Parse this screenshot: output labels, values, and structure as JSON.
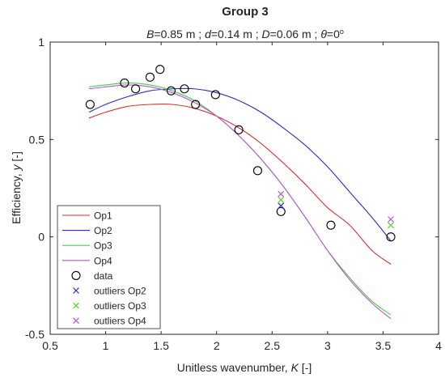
{
  "chart_data": {
    "type": "scatter",
    "title": "Group 3",
    "subtitle": {
      "parts": [
        {
          "text": "B",
          "italic": true
        },
        {
          "text": "=0.85 m ; ",
          "italic": false
        },
        {
          "text": "d",
          "italic": true
        },
        {
          "text": "=0.14 m ; ",
          "italic": false
        },
        {
          "text": "D",
          "italic": true
        },
        {
          "text": "=0.06 m ; ",
          "italic": false
        },
        {
          "text": "θ",
          "italic": true
        },
        {
          "text": "=0",
          "italic": false
        }
      ],
      "superscript": "o"
    },
    "xlabel": {
      "prefix": "Unitless wavenumber, ",
      "symbol": "K",
      "suffix": " [-]"
    },
    "ylabel": {
      "prefix": "Efficiency, ",
      "symbol": "y",
      "suffix": " [-]"
    },
    "xlim": [
      0.5,
      4
    ],
    "ylim": [
      -0.5,
      1
    ],
    "xticks": [
      0.5,
      1,
      1.5,
      2,
      2.5,
      3,
      3.5,
      4
    ],
    "xtick_labels": [
      "0.5",
      "1",
      "1.5",
      "2",
      "2.5",
      "3",
      "3.5",
      "4"
    ],
    "yticks": [
      -0.5,
      0,
      0.5,
      1
    ],
    "ytick_labels": [
      "-0.5",
      "0",
      "0.5",
      "1"
    ],
    "grid": false,
    "legend_position": "lower-left",
    "lines": [
      {
        "name": "Op1",
        "color": "#e0322c",
        "x": [
          0.85,
          1.0,
          1.2,
          1.4,
          1.6,
          1.8,
          2.0,
          2.2,
          2.4,
          2.6,
          2.8,
          3.0,
          3.2,
          3.4,
          3.57
        ],
        "y": [
          0.61,
          0.64,
          0.67,
          0.68,
          0.68,
          0.66,
          0.62,
          0.56,
          0.48,
          0.38,
          0.27,
          0.15,
          0.06,
          -0.07,
          -0.14
        ]
      },
      {
        "name": "Op2",
        "color": "#2a2ad4",
        "x": [
          0.85,
          1.0,
          1.2,
          1.4,
          1.6,
          1.8,
          2.0,
          2.2,
          2.4,
          2.6,
          2.8,
          3.0,
          3.2,
          3.4,
          3.57
        ],
        "y": [
          0.64,
          0.68,
          0.72,
          0.75,
          0.76,
          0.76,
          0.74,
          0.7,
          0.64,
          0.56,
          0.47,
          0.36,
          0.23,
          0.1,
          -0.02
        ]
      },
      {
        "name": "Op3",
        "color": "#3fd43f",
        "x": [
          0.85,
          1.0,
          1.2,
          1.4,
          1.6,
          1.8,
          2.0,
          2.2,
          2.4,
          2.6,
          2.8,
          3.0,
          3.2,
          3.4,
          3.57
        ],
        "y": [
          0.77,
          0.78,
          0.79,
          0.78,
          0.75,
          0.7,
          0.62,
          0.52,
          0.4,
          0.26,
          0.1,
          -0.07,
          -0.21,
          -0.33,
          -0.4
        ]
      },
      {
        "name": "Op4",
        "color": "#c44ee0",
        "x": [
          0.85,
          1.0,
          1.2,
          1.4,
          1.6,
          1.8,
          2.0,
          2.2,
          2.4,
          2.6,
          2.8,
          3.0,
          3.2,
          3.4,
          3.57
        ],
        "y": [
          0.76,
          0.77,
          0.78,
          0.77,
          0.74,
          0.69,
          0.62,
          0.52,
          0.4,
          0.26,
          0.1,
          -0.07,
          -0.22,
          -0.34,
          -0.42
        ]
      }
    ],
    "data_points": {
      "name": "data",
      "color": "#000000",
      "x": [
        0.86,
        1.17,
        1.27,
        1.4,
        1.49,
        1.59,
        1.71,
        1.81,
        1.99,
        2.2,
        2.37,
        2.58,
        3.03,
        3.57
      ],
      "y": [
        0.68,
        0.79,
        0.76,
        0.82,
        0.86,
        0.75,
        0.76,
        0.68,
        0.73,
        0.55,
        0.34,
        0.13,
        0.06,
        0.0
      ]
    },
    "outliers": [
      {
        "name": "outliers Op2",
        "color": "#2a2ad4",
        "x": [
          2.58
        ],
        "y": [
          0.16
        ]
      },
      {
        "name": "outliers Op3",
        "color": "#56d62a",
        "x": [
          2.58,
          3.57
        ],
        "y": [
          0.19,
          0.06
        ]
      },
      {
        "name": "outliers Op4",
        "color": "#c44ee0",
        "x": [
          2.58,
          3.57
        ],
        "y": [
          0.22,
          0.09
        ]
      }
    ],
    "legend": [
      "Op1",
      "Op2",
      "Op3",
      "Op4",
      "data",
      "outliers Op2",
      "outliers Op3",
      "outliers Op4"
    ]
  }
}
